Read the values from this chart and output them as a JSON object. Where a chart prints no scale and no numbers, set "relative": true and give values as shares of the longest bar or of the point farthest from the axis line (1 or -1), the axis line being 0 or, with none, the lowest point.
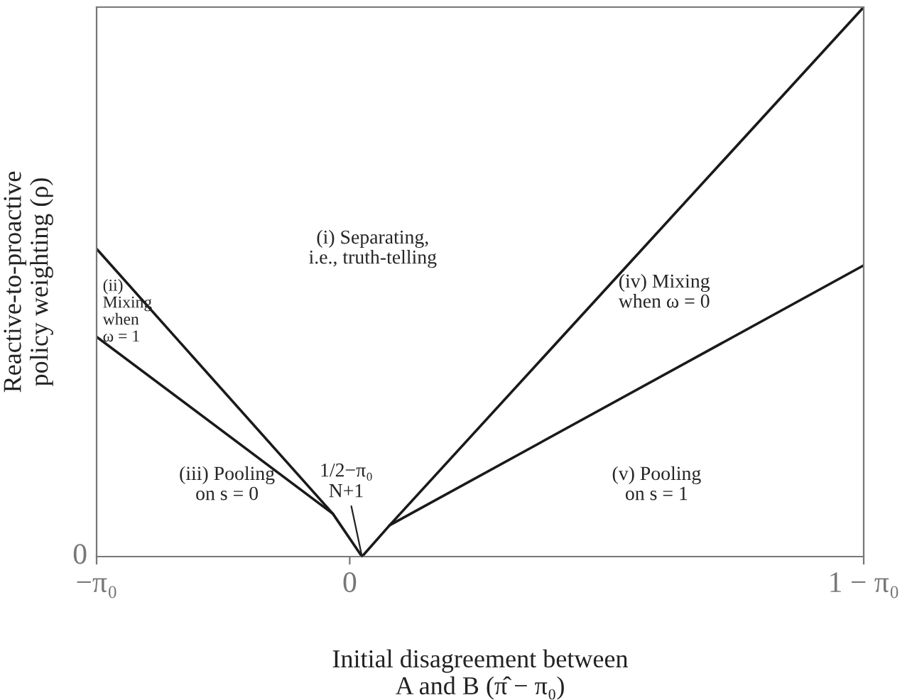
{
  "chart_data": {
    "type": "line",
    "relative": true,
    "xlabel": "Initial disagreement between\nA and B (π̂ − π₀)",
    "ylabel": "Reactive-to-proactive\npolicy weighting (ρ)",
    "xlim": [
      -0.33,
      0.67
    ],
    "xticks": [
      {
        "value": -0.33,
        "label": "−π₀"
      },
      {
        "value": 0,
        "label": "0"
      },
      {
        "value": 0.67,
        "label": "1 − π₀"
      }
    ],
    "series": [
      {
        "color": "#1a1a1a",
        "x": [
          -0.33,
          -0.022,
          0.016
        ],
        "values": [
          0.56,
          0.078,
          0
        ]
      },
      {
        "color": "#1a1a1a",
        "x": [
          -0.33,
          -0.022
        ],
        "values": [
          0.4,
          0.078
        ]
      },
      {
        "color": "#1a1a1a",
        "x": [
          0.016,
          0.052,
          0.67
        ],
        "values": [
          0,
          0.057,
          1.0
        ]
      },
      {
        "color": "#1a1a1a",
        "x": [
          0.052,
          0.67
        ],
        "values": [
          0.057,
          0.53
        ]
      }
    ],
    "annotations": [
      "(i) Separating,\ni.e., truth-telling",
      "(ii)\nMixing\nwhen\nω = 1",
      "(iii) Pooling\non s = 0",
      "(iv) Mixing\nwhen ω = 0",
      "(v) Pooling\non s = 1",
      {
        "text": "1/2−π₀\nN+1",
        "x": 0.016,
        "y": 0
      },
      "0"
    ],
    "grid": false,
    "legend": false,
    "marker": "none",
    "line_style": "solid"
  }
}
